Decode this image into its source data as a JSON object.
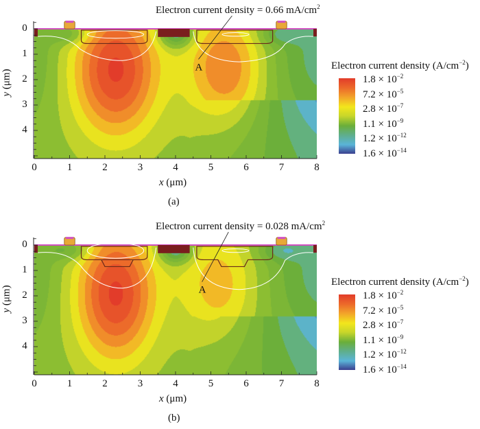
{
  "chart_data": [
    {
      "type": "heatmap",
      "panel_label": "(a)",
      "annotation": {
        "text": "Electron current density = 0.66 mA/cm",
        "sup": "2",
        "point_label": "A"
      },
      "xlabel_var": "x",
      "xlabel_unit": " (μm)",
      "ylabel_var": "y",
      "ylabel_unit": " (μm)",
      "xlim": [
        0,
        8
      ],
      "ylim": [
        5.1,
        -0.3
      ],
      "xticks": [
        "0",
        "1",
        "2",
        "3",
        "4",
        "5",
        "6",
        "7",
        "8"
      ],
      "yticks": [
        "0",
        "1",
        "2",
        "3",
        "4"
      ],
      "colorbar": {
        "title": "Electron current density (A/cm",
        "title_sup": "−2",
        "title_end": ")",
        "labels": [
          {
            "m": "1.8 × 10",
            "e": "−2"
          },
          {
            "m": "7.2 × 10",
            "e": "−5"
          },
          {
            "m": "2.8 × 10",
            "e": "−7"
          },
          {
            "m": "1.1 × 10",
            "e": "−9"
          },
          {
            "m": "1.2 × 10",
            "e": "−12"
          },
          {
            "m": "1.6 × 10",
            "e": "−14"
          }
        ],
        "colors": [
          "#e23c2a",
          "#ec6a2a",
          "#f2a32a",
          "#f2e61c",
          "#c8d62a",
          "#6aae3a",
          "#5fae8a",
          "#5ab4d8",
          "#3b3f8f"
        ]
      }
    },
    {
      "type": "heatmap",
      "panel_label": "(b)",
      "annotation": {
        "text": "Electron current density = 0.028 mA/cm",
        "sup": "2",
        "point_label": "A"
      },
      "xlabel_var": "x",
      "xlabel_unit": " (μm)",
      "ylabel_var": "y",
      "ylabel_unit": " (μm)",
      "xlim": [
        0,
        8
      ],
      "ylim": [
        5.1,
        -0.3
      ],
      "xticks": [
        "0",
        "1",
        "2",
        "3",
        "4",
        "5",
        "6",
        "7",
        "8"
      ],
      "yticks": [
        "0",
        "1",
        "2",
        "3",
        "4"
      ],
      "colorbar": {
        "title": "Electron current density (A/cm",
        "title_sup": "−2",
        "title_end": ")",
        "labels": [
          {
            "m": "1.8 × 10",
            "e": "−2"
          },
          {
            "m": "7.2 × 10",
            "e": "−5"
          },
          {
            "m": "2.8 × 10",
            "e": "−7"
          },
          {
            "m": "1.1 × 10",
            "e": "−9"
          },
          {
            "m": "1.2 × 10",
            "e": "−12"
          },
          {
            "m": "1.6 × 10",
            "e": "−14"
          }
        ],
        "colors": [
          "#e23c2a",
          "#ec6a2a",
          "#f2a32a",
          "#f2e61c",
          "#c8d62a",
          "#6aae3a",
          "#5fae8a",
          "#5ab4d8",
          "#3b3f8f"
        ]
      }
    }
  ]
}
